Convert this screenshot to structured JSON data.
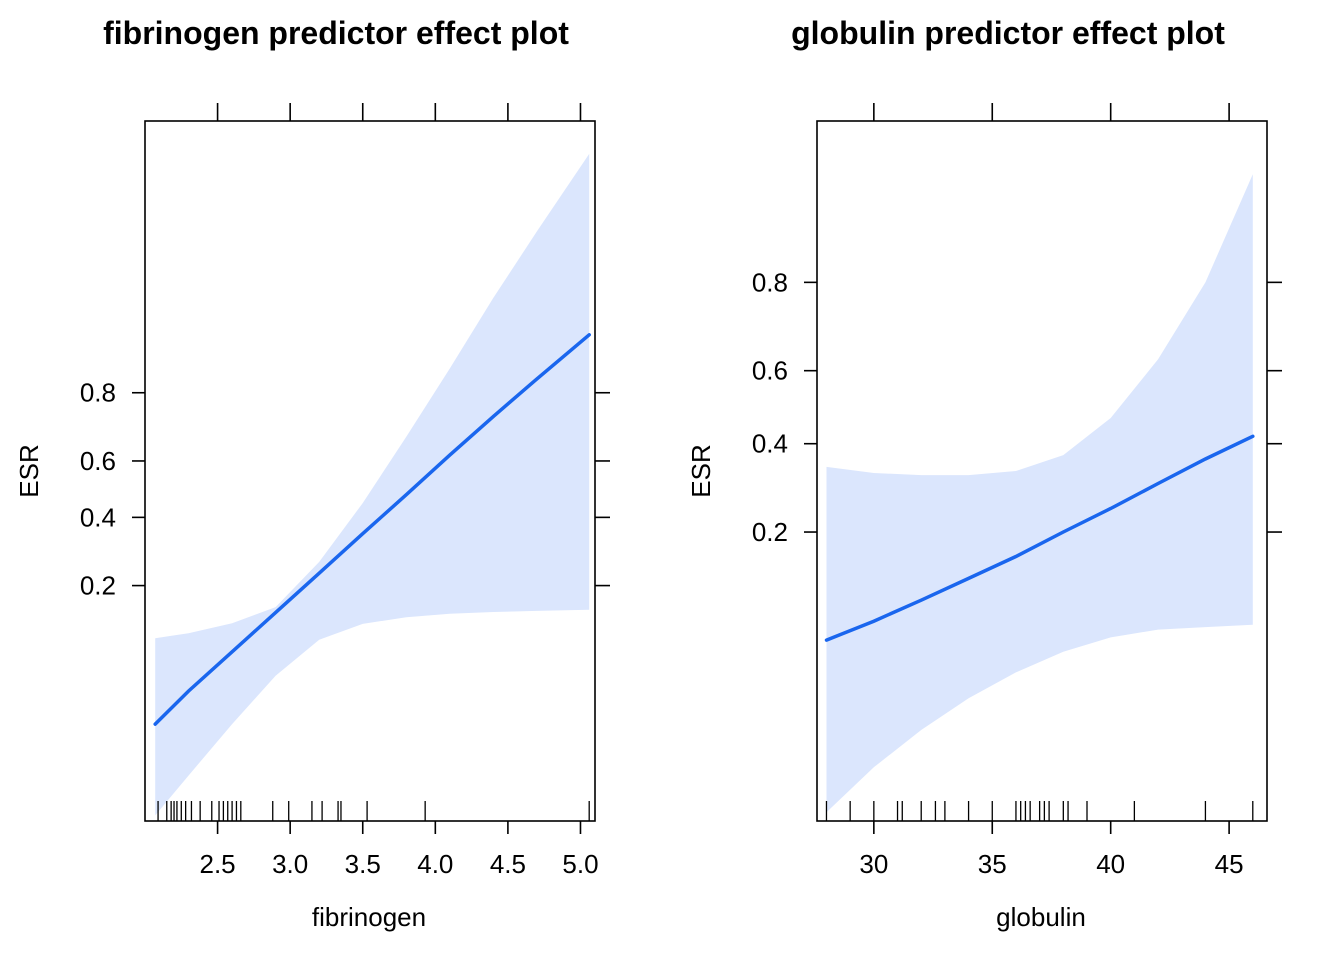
{
  "chart_data": [
    {
      "type": "line",
      "title": "fibrinogen predictor effect plot",
      "xlabel": "fibrinogen",
      "ylabel": "ESR",
      "xlim": [
        2.0,
        5.1
      ],
      "x_ticks": [
        2.5,
        3.0,
        3.5,
        4.0,
        4.5,
        5.0
      ],
      "x_tick_labels": [
        "2.5",
        "3.0",
        "3.5",
        "4.0",
        "4.5",
        "5.0"
      ],
      "y_scale": "logit",
      "ylim": [
        0.0084,
        0.995
      ],
      "y_ticks": [
        0.2,
        0.4,
        0.6,
        0.8
      ],
      "y_tick_labels": [
        "0.2",
        "0.4",
        "0.6",
        "0.8"
      ],
      "series": [
        {
          "x": [
            2.07,
            2.3,
            2.6,
            2.9,
            3.2,
            3.5,
            3.8,
            4.1,
            4.4,
            4.7,
            5.06
          ],
          "y": [
            0.033,
            0.052,
            0.088,
            0.145,
            0.23,
            0.345,
            0.48,
            0.62,
            0.74,
            0.83,
            0.902
          ],
          "lower": [
            0.0091,
            0.016,
            0.033,
            0.064,
            0.103,
            0.126,
            0.137,
            0.143,
            0.146,
            0.148,
            0.15
          ],
          "upper": [
            0.105,
            0.112,
            0.127,
            0.155,
            0.26,
            0.45,
            0.68,
            0.85,
            0.94,
            0.976,
            0.992
          ]
        }
      ],
      "rug": [
        2.09,
        2.15,
        2.18,
        2.2,
        2.22,
        2.25,
        2.28,
        2.32,
        2.38,
        2.46,
        2.51,
        2.54,
        2.57,
        2.6,
        2.63,
        2.66,
        2.88,
        2.99,
        3.15,
        3.22,
        3.33,
        3.35,
        3.53,
        3.93,
        5.06
      ]
    },
    {
      "type": "line",
      "title": "globulin predictor effect plot",
      "xlabel": "globulin",
      "ylabel": "ESR",
      "xlim": [
        27.6,
        46.6
      ],
      "x_ticks": [
        30,
        35,
        40,
        45
      ],
      "x_tick_labels": [
        "30",
        "35",
        "40",
        "45"
      ],
      "y_scale": "logit",
      "ylim": [
        0.01,
        0.96
      ],
      "y_ticks": [
        0.2,
        0.4,
        0.6,
        0.8
      ],
      "y_tick_labels": [
        "0.2",
        "0.4",
        "0.6",
        "0.8"
      ],
      "series": [
        {
          "x": [
            28,
            30,
            32,
            34,
            36,
            38,
            40,
            42,
            44,
            46
          ],
          "y": [
            0.07,
            0.085,
            0.105,
            0.13,
            0.16,
            0.2,
            0.245,
            0.3,
            0.36,
            0.42
          ],
          "lower": [
            0.011,
            0.018,
            0.027,
            0.038,
            0.05,
            0.062,
            0.072,
            0.078,
            0.08,
            0.082
          ],
          "upper": [
            0.34,
            0.325,
            0.32,
            0.32,
            0.33,
            0.37,
            0.47,
            0.63,
            0.8,
            0.93
          ]
        }
      ],
      "rug": [
        28,
        29,
        30,
        31,
        31.2,
        32,
        32.6,
        33,
        34,
        35,
        36,
        36.2,
        36.4,
        36.6,
        37,
        37.2,
        37.4,
        38,
        38.2,
        39,
        41,
        44,
        46
      ]
    }
  ],
  "colors": {
    "line": "#1a66ee",
    "band": "#dbe6fd",
    "axis": "#000000"
  }
}
